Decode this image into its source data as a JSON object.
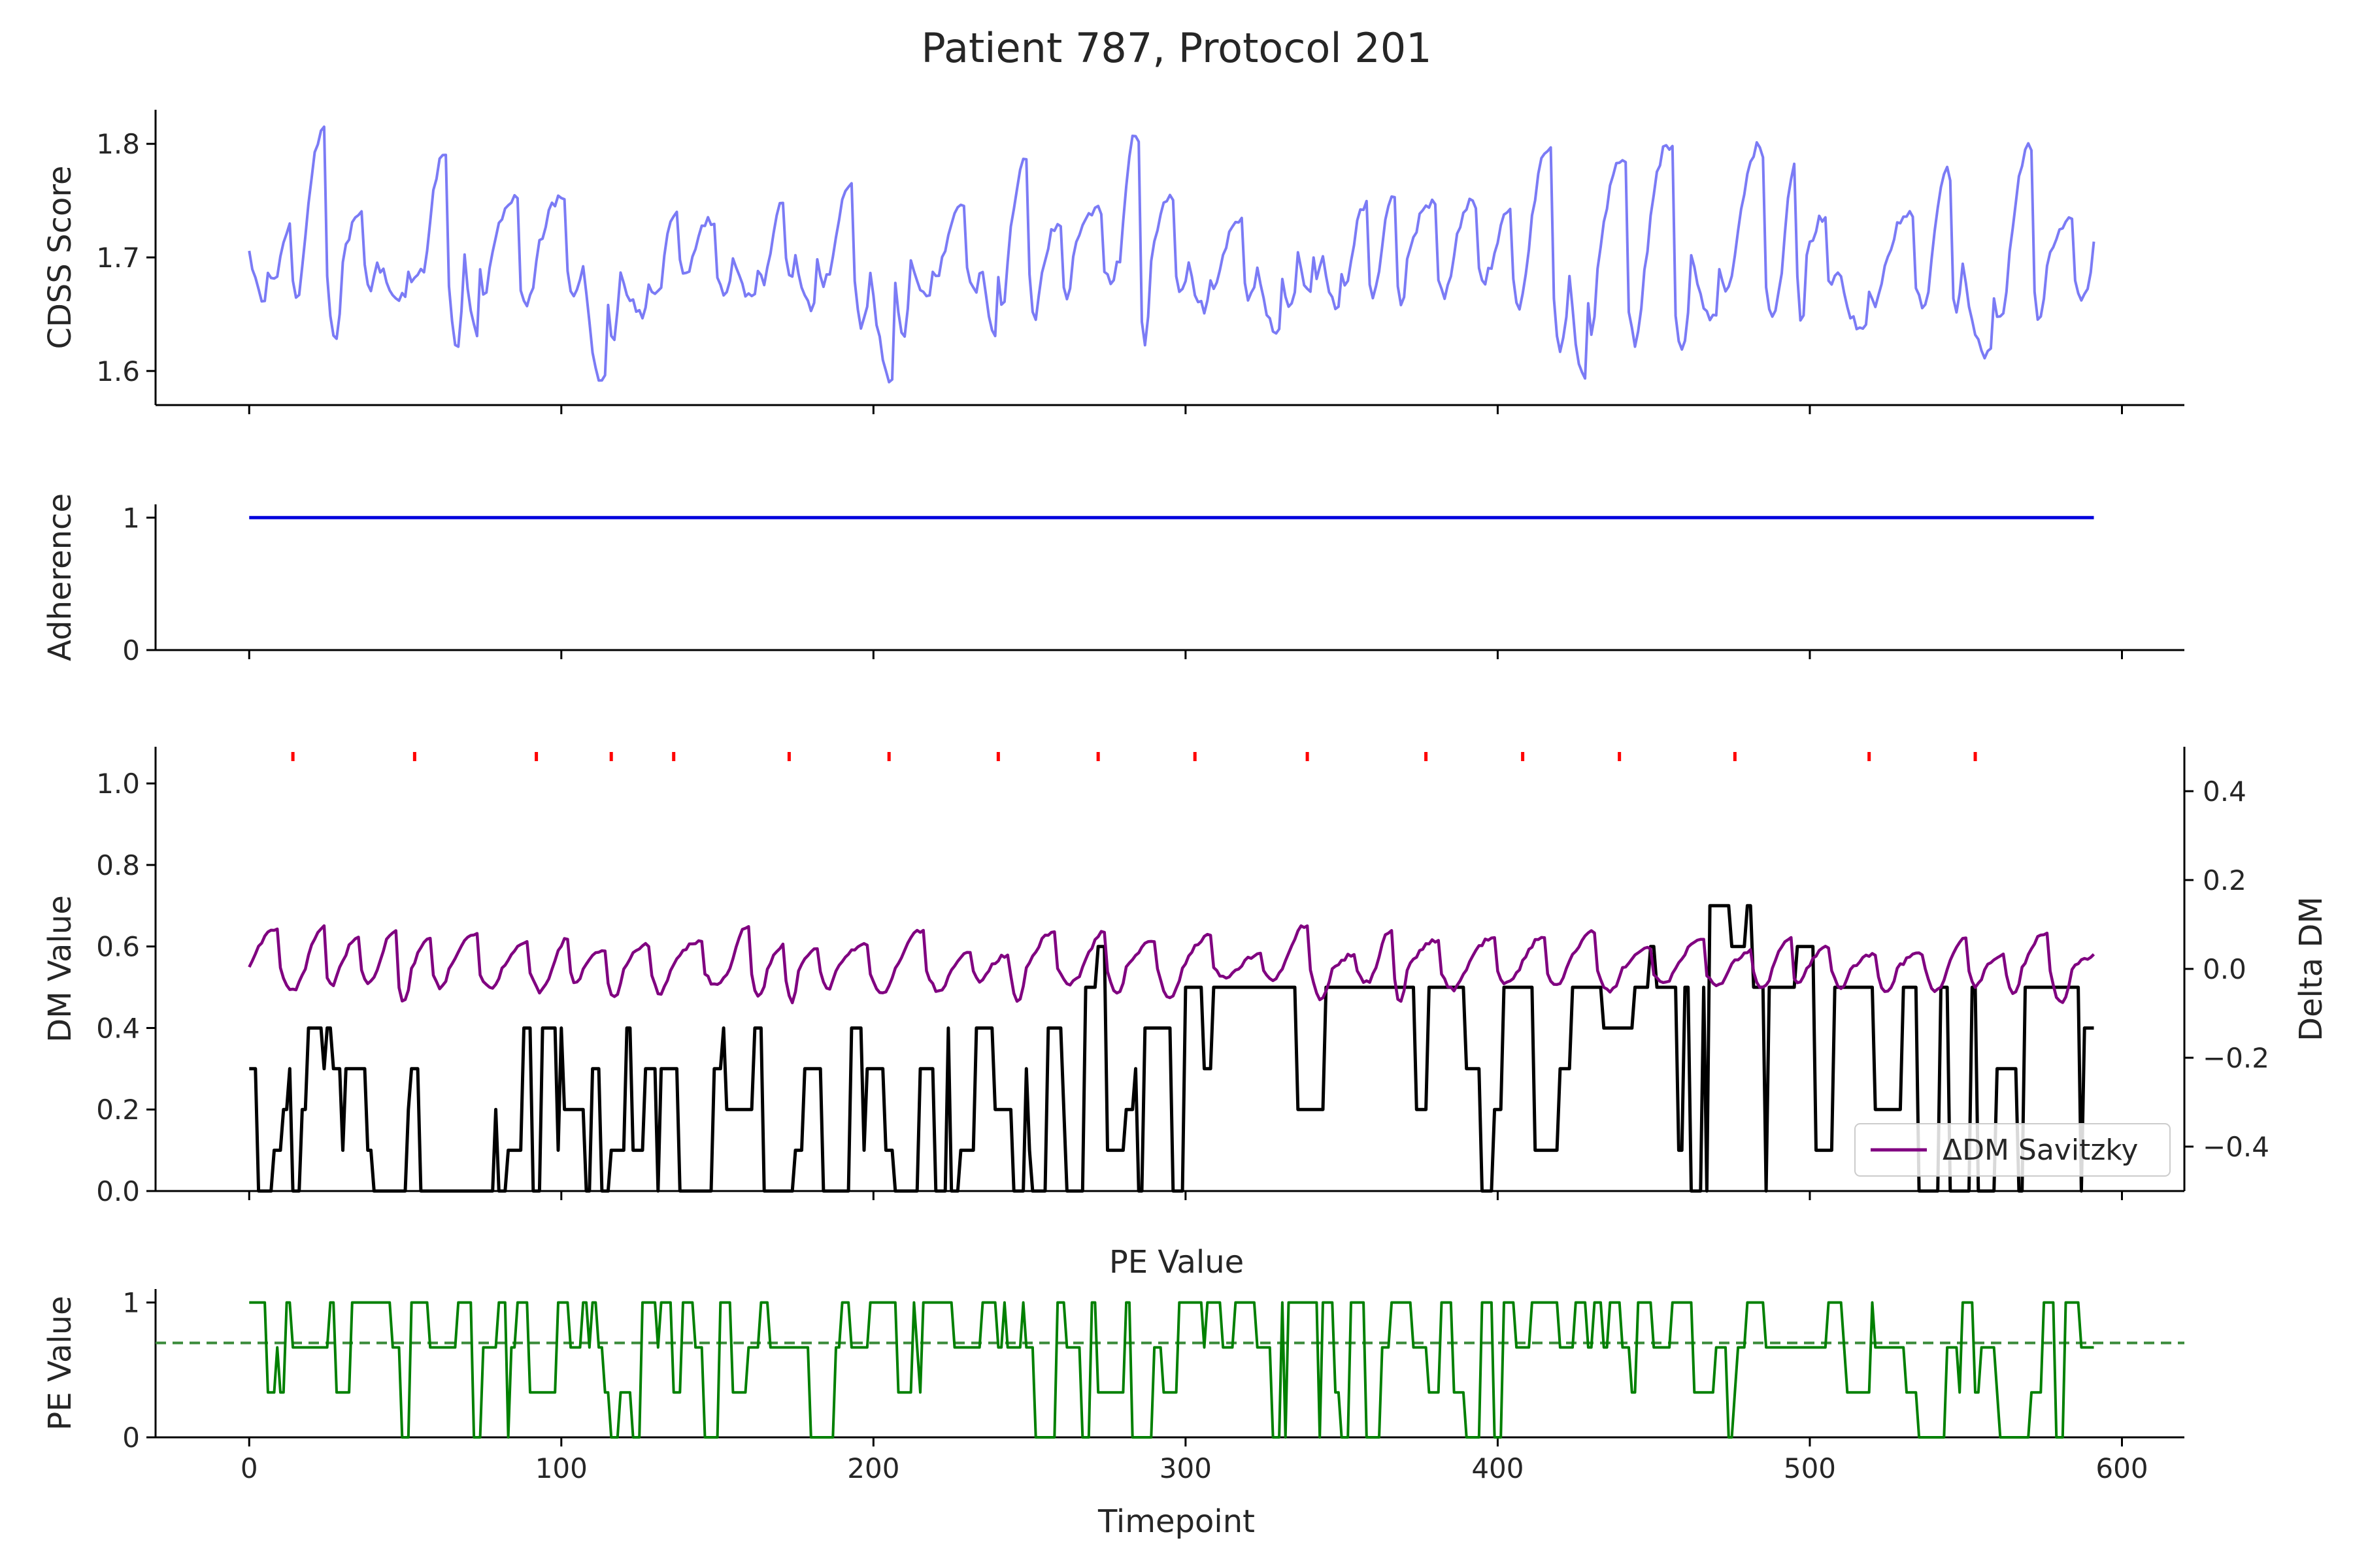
{
  "chart_data": {
    "title": "Patient 787, Protocol 201",
    "xlabel": "Timepoint",
    "x_range": [
      -30,
      620
    ],
    "x_ticks": [
      "0",
      "100",
      "200",
      "300",
      "400",
      "500",
      "600"
    ],
    "x_tick_values": [
      0,
      100,
      200,
      300,
      400,
      500,
      600
    ],
    "n_timepoints": 592,
    "panels": [
      {
        "type": "line",
        "ylabel": "CDSS Score",
        "ylim": [
          1.57,
          1.83
        ],
        "y_ticks": [
          "1.6",
          "1.7",
          "1.8"
        ],
        "y_tick_values": [
          1.6,
          1.7,
          1.8
        ],
        "series": [
          {
            "color": "#7b7bf5",
            "values": "oscillating 1.58–1.82, mean ~1.70"
          }
        ]
      },
      {
        "type": "line",
        "ylabel": "Adherence",
        "ylim": [
          0,
          1.1
        ],
        "y_ticks": [
          "0",
          "1"
        ],
        "y_tick_values": [
          0,
          1
        ],
        "series": [
          {
            "color": "#0000dd",
            "constant_value": 1
          }
        ]
      },
      {
        "type": "line",
        "ylabel": "DM Value",
        "ylim": [
          0,
          1.09
        ],
        "y_ticks": [
          "0.0",
          "0.2",
          "0.4",
          "0.6",
          "0.8",
          "1.0"
        ],
        "y_tick_values": [
          0.0,
          0.2,
          0.4,
          0.6,
          0.8,
          1.0
        ],
        "secondary_ylabel": "Delta DM",
        "secondary_ylim": [
          -0.5,
          0.5
        ],
        "secondary_y_ticks": [
          "−0.4",
          "−0.2",
          "0.0",
          "0.2",
          "0.4"
        ],
        "secondary_y_tick_values": [
          -0.4,
          -0.2,
          0.0,
          0.2,
          0.4
        ],
        "event_markers_x": [
          14,
          53,
          92,
          116,
          136,
          173,
          205,
          240,
          272,
          303,
          339,
          377,
          408,
          439,
          476,
          519,
          553
        ],
        "event_marker_color": "#ff0000",
        "series": [
          {
            "color": "#000000",
            "values": "step series 0.0–0.7"
          },
          {
            "name": "ΔDM Savitzky",
            "color": "#800080",
            "axis": "secondary",
            "values": "smoothed, approx −0.12 to 0.12"
          }
        ],
        "legend": {
          "position": "lower-right",
          "entries": [
            "ΔDM Savitzky"
          ]
        }
      },
      {
        "type": "line",
        "panel_title": "PE Value",
        "ylabel": "PE Value",
        "ylim": [
          0,
          1.1
        ],
        "y_ticks": [
          "0",
          "1"
        ],
        "y_tick_values": [
          0,
          1
        ],
        "reference_line": {
          "y": 0.7,
          "style": "dashed",
          "color": "#3a8a3a"
        },
        "series": [
          {
            "color": "#008000",
            "values": "levels {0, 0.33, 0.67, 1}"
          }
        ]
      }
    ],
    "grid": false
  }
}
